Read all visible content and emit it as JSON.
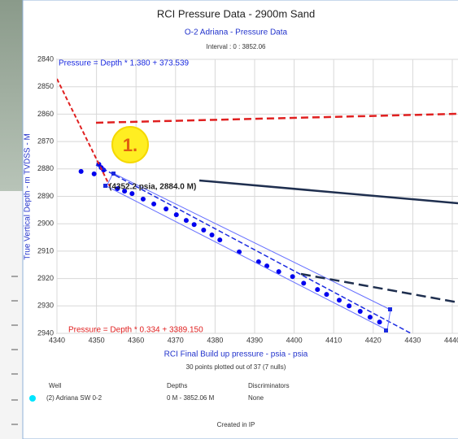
{
  "chart_data": {
    "type": "scatter",
    "title": "RCI Pressure Data - 2900m Sand",
    "subtitle": "O-2 Adriana - Pressure Data",
    "interval": "Interval : 0 : 3852.06",
    "x_label": "RCI Final Build up pressure - psia - psia",
    "y_label": "True Vertical Depth - m TVDSS - M",
    "points_note": "30 points plotted out of 37 (7 nulls)",
    "fit_upper": "Pressure = Depth * 1.380  +  373.539",
    "fit_lower": "Pressure = Depth * 0.334  +  3389.150",
    "point_label": "(4352.2 psia, 2884.0 M)",
    "marker": "1.",
    "color": "#0000ee",
    "grid": true,
    "y_inverted": true,
    "xlim": [
      4340,
      4440
    ],
    "xticks": [
      4340,
      4350,
      4360,
      4370,
      4380,
      4390,
      4400,
      4410,
      4420,
      4430,
      4440
    ],
    "ylim": [
      2840,
      2940
    ],
    "yticks": [
      2840,
      2850,
      2860,
      2870,
      2880,
      2890,
      2900,
      2910,
      2920,
      2930,
      2940
    ],
    "x": [
      4346.1,
      4349.4,
      4350.6,
      4351.2,
      4351.8,
      4355.3,
      4357.1,
      4359.0,
      4361.8,
      4364.5,
      4367.6,
      4370.2,
      4372.7,
      4374.7,
      4377.1,
      4379.2,
      4381.2,
      4386.1,
      4391.0,
      4393.1,
      4396.1,
      4399.6,
      4402.4,
      4405.9,
      4408.2,
      4411.4,
      4413.9,
      4416.7,
      4419.2,
      4421.6
    ],
    "values": [
      2880.9,
      2881.8,
      2878.3,
      2879.5,
      2880.4,
      2887.2,
      2888.1,
      2889.0,
      2891.0,
      2892.8,
      2894.6,
      2896.7,
      2898.8,
      2900.3,
      2902.3,
      2904.1,
      2905.9,
      2910.3,
      2913.9,
      2915.4,
      2917.5,
      2919.3,
      2921.7,
      2924.0,
      2925.8,
      2927.9,
      2930.0,
      2932.0,
      2934.1,
      2935.9
    ],
    "legend_table": {
      "headers": [
        "Well",
        "Depths",
        "Discriminators"
      ],
      "row": [
        "(2) Adriana SW 0-2",
        "0 M - 3852.06 M",
        "None"
      ]
    },
    "footer": "Created in IP"
  }
}
